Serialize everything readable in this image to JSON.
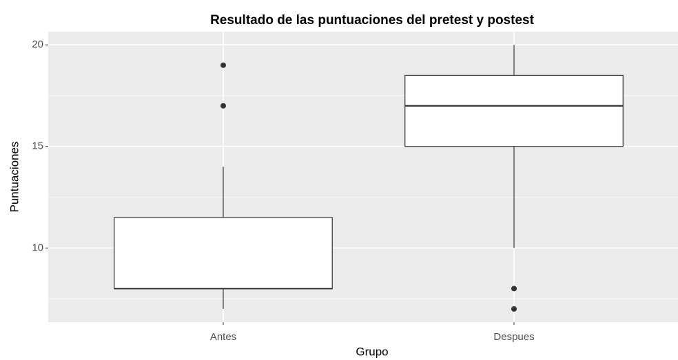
{
  "chart_data": {
    "type": "box",
    "title": "Resultado de las puntuaciones del pretest y postest",
    "x_label": "Grupo",
    "y_label": "Puntuaciones",
    "categories": [
      "Antes",
      "Despues"
    ],
    "boxes": [
      {
        "min": 7,
        "q1": 8,
        "median": 8,
        "q3": 11.5,
        "max": 14,
        "outliers": [
          17,
          19
        ]
      },
      {
        "min": 10,
        "q1": 15,
        "median": 17,
        "q3": 18.5,
        "max": 20,
        "outliers": [
          8,
          7
        ]
      }
    ],
    "ylim": [
      6.35,
      20.65
    ],
    "yticks": [
      10,
      15,
      20
    ],
    "y_minor_ticks": [
      7.5,
      12.5,
      17.5
    ],
    "grid": true,
    "panel_color": "#ebebeb",
    "box_fill": "#ffffff",
    "line_color": "#333333"
  }
}
